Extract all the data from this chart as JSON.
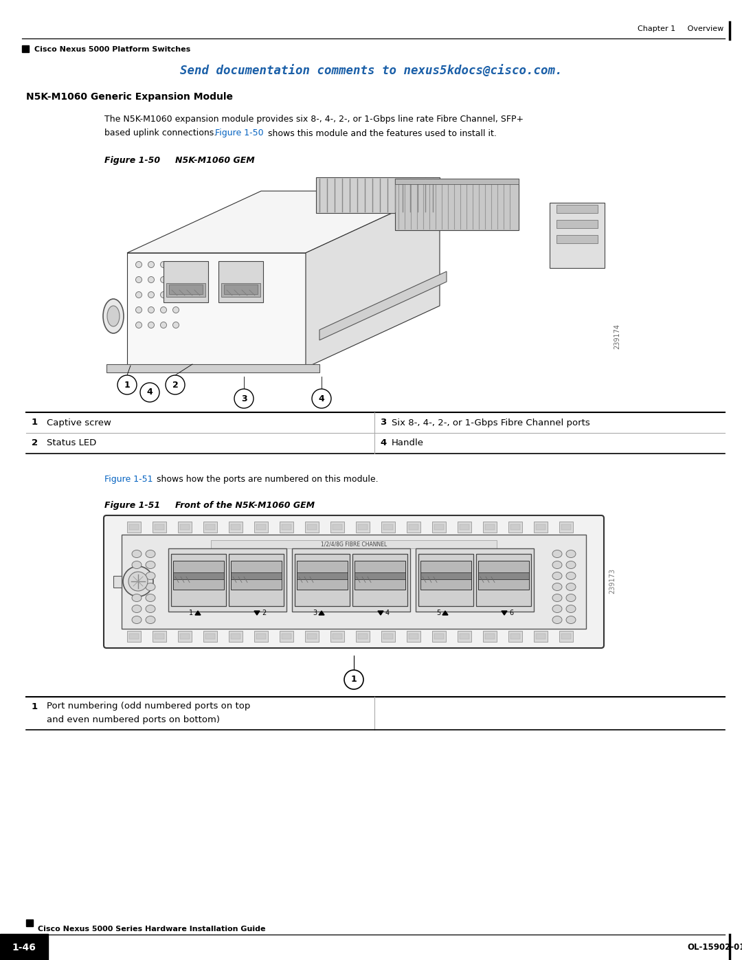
{
  "bg_color": "#ffffff",
  "chapter_text": "Chapter 1     Overview",
  "header_label": "Cisco Nexus 5000 Platform Switches",
  "send_doc_text": "Send documentation comments to nexus5kdocs@cisco.com.",
  "section_title": "N5K-M1060 Generic Expansion Module",
  "body_text_line1": "The N5K-M1060 expansion module provides six 8-, 4-, 2-, or 1-Gbps line rate Fibre Channel, SFP+",
  "body_text_line2a": "based uplink connections. ",
  "body_text_link50": "Figure 1-50",
  "body_text_line2b": " shows this module and the features used to install it.",
  "fig50_label": "Figure 1-50",
  "fig50_title": "     N5K-M1060 GEM",
  "fig51_label": "Figure 1-51",
  "fig51_title": "     Front of the N5K-M1060 GEM",
  "fig51_intro_link": "Figure 1-51",
  "fig51_intro_rest": " shows how the ports are numbered on this module.",
  "tbl1": [
    [
      "1",
      "Captive screw",
      "3",
      "Six 8-, 4-, 2-, or 1-Gbps Fibre Channel ports"
    ],
    [
      "2",
      "Status LED",
      "4",
      "Handle"
    ]
  ],
  "tbl2": [
    [
      "1",
      "Port numbering (odd numbered ports on top",
      ""
    ],
    [
      "",
      "and even numbered ports on bottom)",
      ""
    ]
  ],
  "serial50": "239174",
  "serial51": "239173",
  "footer_guide": "Cisco Nexus 5000 Series Hardware Installation Guide",
  "footer_page": "1-46",
  "footer_doc": "OL-15902-01",
  "link_color": "#0563C1",
  "cisco_blue": "#1a5fa8",
  "black": "#000000",
  "gray_line": "#aaaaaa",
  "draw_gray": "#e0e0e0",
  "draw_dark": "#555555"
}
